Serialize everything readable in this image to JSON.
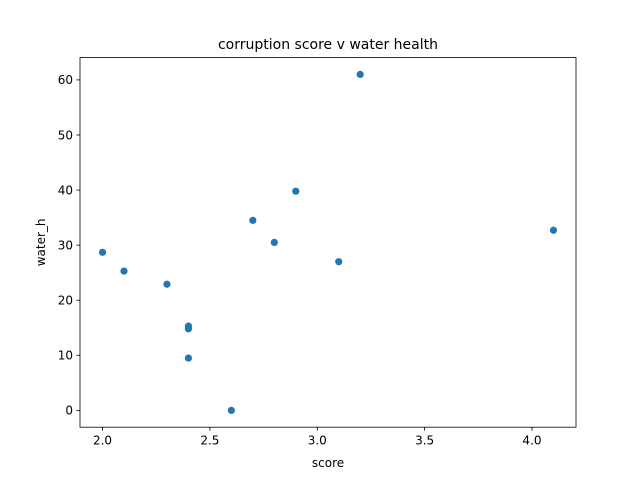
{
  "chart_data": {
    "type": "scatter",
    "title": "corruption score v water health",
    "xlabel": "score",
    "ylabel": "water_h",
    "xlim": [
      1.895,
      4.205
    ],
    "ylim": [
      -3.05,
      64.05
    ],
    "xticks": [
      2.0,
      2.5,
      3.0,
      3.5,
      4.0
    ],
    "xtick_labels": [
      "2.0",
      "2.5",
      "3.0",
      "3.5",
      "4.0"
    ],
    "yticks": [
      0,
      10,
      20,
      30,
      40,
      50,
      60
    ],
    "ytick_labels": [
      "0",
      "10",
      "20",
      "30",
      "40",
      "50",
      "60"
    ],
    "grid": false,
    "legend": "none",
    "marker_color": "#1f77b4",
    "points": [
      {
        "x": 2.0,
        "y": 28.7
      },
      {
        "x": 2.1,
        "y": 25.3
      },
      {
        "x": 2.3,
        "y": 22.9
      },
      {
        "x": 2.4,
        "y": 15.3
      },
      {
        "x": 2.4,
        "y": 14.8
      },
      {
        "x": 2.4,
        "y": 9.5
      },
      {
        "x": 2.6,
        "y": 0.0
      },
      {
        "x": 2.7,
        "y": 34.5
      },
      {
        "x": 2.8,
        "y": 30.5
      },
      {
        "x": 2.9,
        "y": 39.8
      },
      {
        "x": 3.1,
        "y": 27.0
      },
      {
        "x": 3.2,
        "y": 61.0
      },
      {
        "x": 4.1,
        "y": 32.7
      }
    ]
  }
}
